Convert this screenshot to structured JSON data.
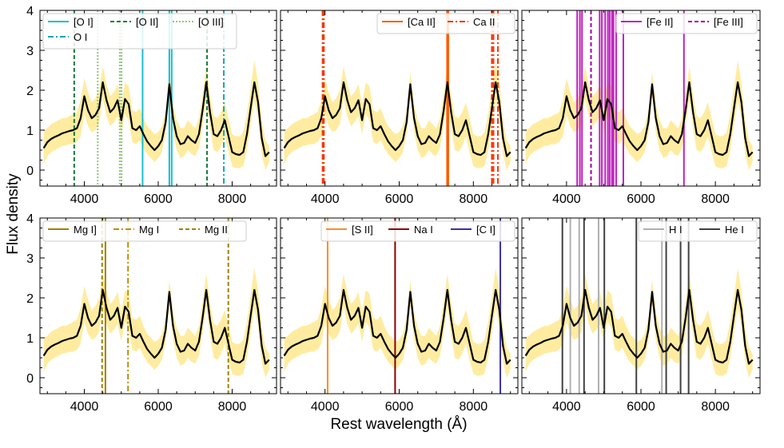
{
  "chart_data": {
    "type": "line",
    "xlabel": "Rest wavelength (Å)",
    "ylabel": "Flux density",
    "xlim": [
      2800,
      9200
    ],
    "ylim": [
      -0.4,
      4.0
    ],
    "xticks": [
      4000,
      6000,
      8000
    ],
    "xtick_labels": [
      "4000",
      "6000",
      "8000"
    ],
    "yticks": [
      0,
      1,
      2,
      3,
      4
    ],
    "ytick_labels": [
      "0",
      "1",
      "2",
      "3",
      "4"
    ],
    "band_color": "#ffe680",
    "spectrum_color": "#000000",
    "mean_spectrum": {
      "x": [
        2900,
        3000,
        3100,
        3200,
        3300,
        3400,
        3500,
        3600,
        3700,
        3800,
        3900,
        4000,
        4100,
        4200,
        4300,
        4400,
        4500,
        4600,
        4700,
        4800,
        4900,
        5000,
        5100,
        5200,
        5300,
        5400,
        5500,
        5600,
        5700,
        5800,
        5900,
        6000,
        6100,
        6200,
        6300,
        6400,
        6500,
        6600,
        6700,
        6800,
        6900,
        7000,
        7100,
        7200,
        7300,
        7400,
        7500,
        7600,
        7700,
        7800,
        7900,
        8000,
        8100,
        8200,
        8300,
        8400,
        8500,
        8600,
        8700,
        8800,
        8900,
        9000
      ],
      "y": [
        0.55,
        0.7,
        0.78,
        0.83,
        0.87,
        0.92,
        0.95,
        0.98,
        1.0,
        1.05,
        1.3,
        1.85,
        1.5,
        1.3,
        1.38,
        1.55,
        2.2,
        1.75,
        1.45,
        1.55,
        1.75,
        1.25,
        1.78,
        1.65,
        1.05,
        1.0,
        1.1,
        0.9,
        0.72,
        0.6,
        0.5,
        0.6,
        0.75,
        1.2,
        2.15,
        1.3,
        0.85,
        0.65,
        0.68,
        0.85,
        0.75,
        0.68,
        0.9,
        1.5,
        2.2,
        1.45,
        0.9,
        0.85,
        1.0,
        1.25,
        0.85,
        0.45,
        0.4,
        0.38,
        0.45,
        0.9,
        1.55,
        2.2,
        1.7,
        0.8,
        0.35,
        0.45
      ],
      "lower": [
        0.15,
        0.35,
        0.45,
        0.5,
        0.55,
        0.6,
        0.62,
        0.65,
        0.65,
        0.7,
        0.85,
        1.4,
        1.1,
        0.95,
        1.0,
        1.15,
        1.8,
        1.35,
        1.1,
        1.2,
        1.35,
        0.9,
        1.4,
        1.25,
        0.7,
        0.65,
        0.75,
        0.55,
        0.4,
        0.3,
        0.2,
        0.3,
        0.45,
        0.9,
        1.85,
        0.95,
        0.5,
        0.3,
        0.35,
        0.5,
        0.4,
        0.35,
        0.55,
        1.1,
        1.8,
        1.05,
        0.5,
        0.45,
        0.6,
        0.85,
        0.45,
        0.1,
        0.05,
        0.05,
        0.1,
        0.5,
        1.1,
        1.75,
        1.3,
        0.4,
        0.0,
        0.2
      ],
      "upper": [
        1.0,
        1.05,
        1.15,
        1.2,
        1.25,
        1.3,
        1.3,
        1.35,
        1.4,
        1.45,
        1.75,
        2.3,
        1.95,
        1.7,
        1.8,
        2.0,
        2.6,
        2.15,
        1.85,
        1.95,
        2.15,
        1.65,
        2.2,
        2.1,
        1.5,
        1.45,
        1.55,
        1.3,
        1.1,
        1.0,
        0.9,
        0.95,
        1.1,
        1.5,
        2.45,
        1.65,
        1.25,
        1.05,
        1.05,
        1.25,
        1.15,
        1.05,
        1.3,
        1.9,
        2.6,
        1.9,
        1.35,
        1.3,
        1.45,
        1.7,
        1.3,
        0.9,
        0.85,
        0.85,
        0.95,
        1.4,
        2.05,
        2.75,
        2.2,
        1.25,
        0.75,
        0.6
      ]
    },
    "panels": [
      {
        "legend": [
          {
            "label": "[O I]",
            "color": "#17becf",
            "dash": "solid"
          },
          {
            "label": "[O II]",
            "color": "#1a7a3c",
            "dash": "dashed"
          },
          {
            "label": "[O III]",
            "color": "#8fc87a",
            "dash": "dotted"
          },
          {
            "label": "O I",
            "color": "#17a5b5",
            "dash": "dashdot"
          }
        ],
        "lines": [
          {
            "x": 3727,
            "style": 1
          },
          {
            "x": 4363,
            "style": 2
          },
          {
            "x": 4959,
            "style": 2
          },
          {
            "x": 5007,
            "style": 2
          },
          {
            "x": 5577,
            "style": 0
          },
          {
            "x": 6300,
            "style": 0
          },
          {
            "x": 6364,
            "style": 0
          },
          {
            "x": 7320,
            "style": 1
          },
          {
            "x": 7774,
            "style": 3
          }
        ]
      },
      {
        "legend": [
          {
            "label": "[Ca II]",
            "color": "#ff5a00",
            "dash": "solid"
          },
          {
            "label": "Ca II",
            "color": "#ff3300",
            "dash": "dashdot"
          }
        ],
        "lines": [
          {
            "x": 3934,
            "style": 1
          },
          {
            "x": 3969,
            "style": 1
          },
          {
            "x": 7291,
            "style": 0
          },
          {
            "x": 7324,
            "style": 0
          },
          {
            "x": 8498,
            "style": 1
          },
          {
            "x": 8542,
            "style": 1
          },
          {
            "x": 8662,
            "style": 1
          }
        ]
      },
      {
        "legend": [
          {
            "label": "[Fe II]",
            "color": "#c020c0",
            "dash": "solid"
          },
          {
            "label": "[Fe III]",
            "color": "#a000a0",
            "dash": "dashed"
          }
        ],
        "lines": [
          {
            "x": 4287,
            "style": 0
          },
          {
            "x": 4359,
            "style": 0
          },
          {
            "x": 4416,
            "style": 0
          },
          {
            "x": 4658,
            "style": 1
          },
          {
            "x": 4890,
            "style": 0
          },
          {
            "x": 4950,
            "style": 0
          },
          {
            "x": 5040,
            "style": 0
          },
          {
            "x": 5111,
            "style": 0
          },
          {
            "x": 5159,
            "style": 0
          },
          {
            "x": 5220,
            "style": 0
          },
          {
            "x": 5262,
            "style": 0
          },
          {
            "x": 5333,
            "style": 0
          },
          {
            "x": 5527,
            "style": 0
          },
          {
            "x": 7155,
            "style": 0
          }
        ]
      },
      {
        "legend": [
          {
            "label": "Mg I]",
            "color": "#a08000",
            "dash": "solid"
          },
          {
            "label": "Mg I",
            "color": "#b89000",
            "dash": "dashdot"
          },
          {
            "label": "Mg II",
            "color": "#a08000",
            "dash": "dashed"
          }
        ],
        "lines": [
          {
            "x": 4481,
            "style": 2
          },
          {
            "x": 4571,
            "style": 0
          },
          {
            "x": 5183,
            "style": 1
          },
          {
            "x": 7896,
            "style": 2
          }
        ]
      },
      {
        "legend": [
          {
            "label": "[S II]",
            "color": "#ff8c20",
            "dash": "solid"
          },
          {
            "label": "Na I",
            "color": "#8b0000",
            "dash": "solid"
          },
          {
            "label": "[C I]",
            "color": "#3a30a0",
            "dash": "solid"
          }
        ],
        "lines": [
          {
            "x": 4070,
            "style": 0
          },
          {
            "x": 5890,
            "style": 1
          },
          {
            "x": 8727,
            "style": 2
          }
        ]
      },
      {
        "legend": [
          {
            "label": "H I",
            "color": "#b0b0b0",
            "dash": "solid"
          },
          {
            "label": "He I",
            "color": "#404040",
            "dash": "solid"
          }
        ],
        "lines": [
          {
            "x": 3889,
            "style": 1
          },
          {
            "x": 4102,
            "style": 0
          },
          {
            "x": 4340,
            "style": 0
          },
          {
            "x": 4471,
            "style": 1
          },
          {
            "x": 4861,
            "style": 0
          },
          {
            "x": 5016,
            "style": 1
          },
          {
            "x": 5876,
            "style": 1
          },
          {
            "x": 6563,
            "style": 0
          },
          {
            "x": 6678,
            "style": 1
          },
          {
            "x": 7065,
            "style": 1
          },
          {
            "x": 7281,
            "style": 1
          }
        ]
      }
    ]
  }
}
